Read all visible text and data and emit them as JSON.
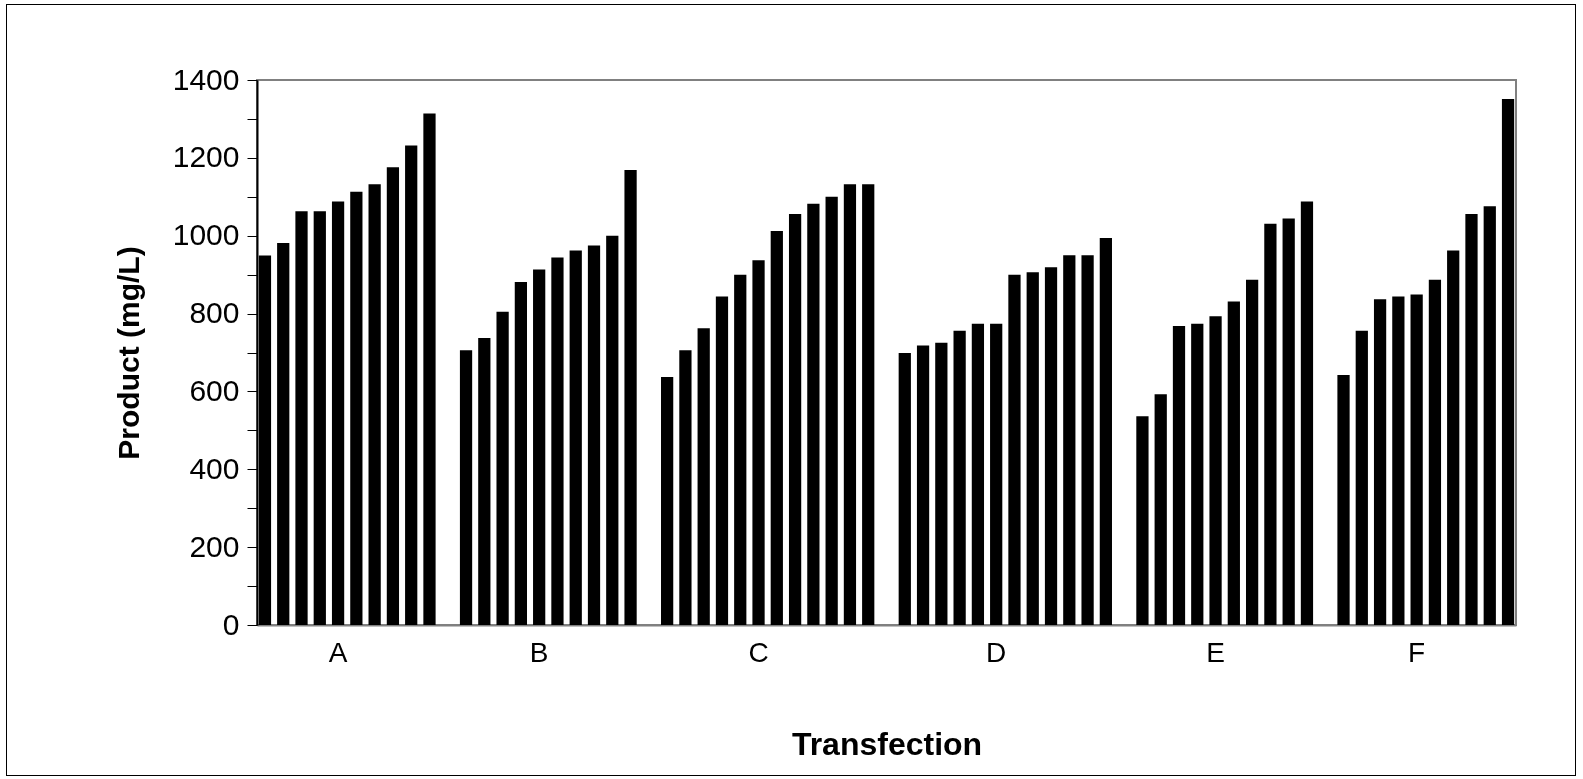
{
  "chart_data": {
    "type": "bar",
    "xlabel": "Transfection",
    "ylabel": "Product (mg/L)",
    "categories": [
      null,
      null,
      null,
      null,
      "A",
      null,
      null,
      null,
      null,
      null,
      null,
      null,
      null,
      null,
      null,
      "B",
      null,
      null,
      null,
      null,
      null,
      null,
      null,
      null,
      null,
      null,
      null,
      "C",
      null,
      null,
      null,
      null,
      null,
      null,
      null,
      null,
      null,
      null,
      null,
      null,
      "D",
      null,
      null,
      null,
      null,
      null,
      null,
      null,
      null,
      null,
      null,
      null,
      "E",
      null,
      null,
      null,
      null,
      null,
      null,
      null,
      null,
      null,
      null,
      "F",
      null,
      null,
      null,
      null,
      null
    ],
    "values": [
      949,
      981,
      1063,
      1063,
      1088,
      1113,
      1132,
      1176,
      1232,
      1314,
      null,
      706,
      737,
      805,
      881,
      913,
      944,
      962,
      975,
      1000,
      1169,
      null,
      637,
      706,
      762,
      844,
      900,
      937,
      1012,
      1056,
      1082,
      1100,
      1132,
      1132,
      null,
      699,
      718,
      725,
      756,
      774,
      774,
      900,
      906,
      919,
      950,
      950,
      994,
      null,
      536,
      593,
      768,
      774,
      793,
      831,
      887,
      1031,
      1044,
      1088,
      null,
      642,
      756,
      837,
      844,
      849,
      887,
      962,
      1056,
      1076,
      1351
    ],
    "color": "#000000",
    "ylim": [
      0,
      1400
    ],
    "yticks": [
      0,
      {
        "value": 100,
        "label": null
      },
      200,
      {
        "value": 300,
        "label": null
      },
      400,
      {
        "value": 500,
        "label": null
      },
      600,
      {
        "value": 700,
        "label": null
      },
      800,
      {
        "value": 900,
        "label": null
      },
      1000,
      {
        "value": 1100,
        "label": null
      },
      1200,
      {
        "value": 1300,
        "label": null
      },
      1400
    ],
    "grid": false
  }
}
